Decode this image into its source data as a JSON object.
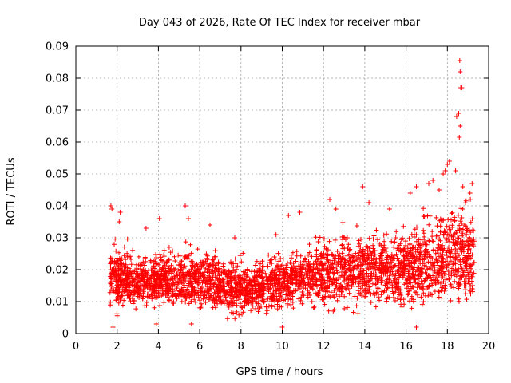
{
  "chart_data": {
    "type": "scatter",
    "title": "Day 043 of 2026, Rate Of TEC Index for receiver mbar",
    "xlabel": "GPS time / hours",
    "ylabel": "ROTI / TECUs",
    "xlim": [
      0,
      20
    ],
    "ylim": [
      0,
      0.09
    ],
    "x_ticks": [
      "0",
      "2",
      "4",
      "6",
      "8",
      "10",
      "12",
      "14",
      "16",
      "18",
      "20"
    ],
    "y_ticks": [
      "0",
      "0.01",
      "0.02",
      "0.03",
      "0.04",
      "0.05",
      "0.06",
      "0.07",
      "0.08",
      "0.09"
    ],
    "grid": true,
    "marker": "+",
    "color": "#ff0000",
    "data_range_hours": [
      1.65,
      19.3
    ],
    "envelope": [
      {
        "x": 1.7,
        "low": 0.004,
        "high": 0.03
      },
      {
        "x": 2.5,
        "low": 0.005,
        "high": 0.028
      },
      {
        "x": 3.5,
        "low": 0.006,
        "high": 0.026
      },
      {
        "x": 4.5,
        "low": 0.006,
        "high": 0.027
      },
      {
        "x": 5.5,
        "low": 0.005,
        "high": 0.029
      },
      {
        "x": 6.5,
        "low": 0.005,
        "high": 0.027
      },
      {
        "x": 7.5,
        "low": 0.004,
        "high": 0.025
      },
      {
        "x": 8.5,
        "low": 0.004,
        "high": 0.024
      },
      {
        "x": 9.5,
        "low": 0.004,
        "high": 0.026
      },
      {
        "x": 10.5,
        "low": 0.006,
        "high": 0.028
      },
      {
        "x": 11.5,
        "low": 0.005,
        "high": 0.031
      },
      {
        "x": 12.5,
        "low": 0.005,
        "high": 0.033
      },
      {
        "x": 13.5,
        "low": 0.005,
        "high": 0.034
      },
      {
        "x": 14.5,
        "low": 0.005,
        "high": 0.034
      },
      {
        "x": 15.5,
        "low": 0.005,
        "high": 0.035
      },
      {
        "x": 16.5,
        "low": 0.004,
        "high": 0.037
      },
      {
        "x": 17.5,
        "low": 0.005,
        "high": 0.04
      },
      {
        "x": 18.5,
        "low": 0.005,
        "high": 0.045
      },
      {
        "x": 19.3,
        "low": 0.006,
        "high": 0.04
      }
    ],
    "outliers": [
      {
        "x": 1.7,
        "y": 0.04
      },
      {
        "x": 1.75,
        "y": 0.039
      },
      {
        "x": 2.15,
        "y": 0.038
      },
      {
        "x": 2.1,
        "y": 0.035
      },
      {
        "x": 3.4,
        "y": 0.033
      },
      {
        "x": 4.05,
        "y": 0.036
      },
      {
        "x": 5.3,
        "y": 0.04
      },
      {
        "x": 5.45,
        "y": 0.036
      },
      {
        "x": 6.5,
        "y": 0.034
      },
      {
        "x": 7.7,
        "y": 0.03
      },
      {
        "x": 9.7,
        "y": 0.031
      },
      {
        "x": 10.3,
        "y": 0.037
      },
      {
        "x": 10.85,
        "y": 0.038
      },
      {
        "x": 12.3,
        "y": 0.042
      },
      {
        "x": 12.6,
        "y": 0.039
      },
      {
        "x": 13.9,
        "y": 0.046
      },
      {
        "x": 14.2,
        "y": 0.041
      },
      {
        "x": 15.2,
        "y": 0.039
      },
      {
        "x": 16.2,
        "y": 0.044
      },
      {
        "x": 16.5,
        "y": 0.046
      },
      {
        "x": 17.1,
        "y": 0.047
      },
      {
        "x": 17.3,
        "y": 0.048
      },
      {
        "x": 17.6,
        "y": 0.045
      },
      {
        "x": 17.8,
        "y": 0.05
      },
      {
        "x": 17.9,
        "y": 0.051
      },
      {
        "x": 18.0,
        "y": 0.053
      },
      {
        "x": 18.1,
        "y": 0.054
      },
      {
        "x": 18.4,
        "y": 0.051
      },
      {
        "x": 18.45,
        "y": 0.068
      },
      {
        "x": 18.55,
        "y": 0.069
      },
      {
        "x": 18.6,
        "y": 0.0855
      },
      {
        "x": 18.62,
        "y": 0.082
      },
      {
        "x": 18.65,
        "y": 0.077
      },
      {
        "x": 18.7,
        "y": 0.077
      },
      {
        "x": 18.62,
        "y": 0.065
      },
      {
        "x": 18.58,
        "y": 0.0615
      },
      {
        "x": 18.75,
        "y": 0.046
      },
      {
        "x": 19.2,
        "y": 0.047
      },
      {
        "x": 19.1,
        "y": 0.044
      },
      {
        "x": 10.0,
        "y": 0.002
      },
      {
        "x": 16.5,
        "y": 0.002
      },
      {
        "x": 5.6,
        "y": 0.003
      },
      {
        "x": 1.8,
        "y": 0.002
      },
      {
        "x": 3.9,
        "y": 0.003
      }
    ],
    "approx_point_count": 3200
  }
}
